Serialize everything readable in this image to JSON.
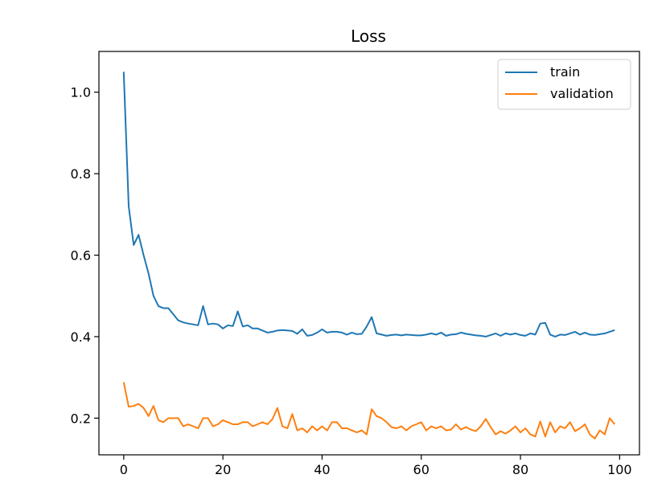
{
  "chart_data": {
    "type": "line",
    "title": "Loss",
    "xlabel": "",
    "ylabel": "",
    "xlim": [
      -5,
      104
    ],
    "ylim": [
      0.11,
      1.1
    ],
    "xticks": [
      0,
      20,
      40,
      60,
      80,
      100
    ],
    "yticks": [
      0.2,
      0.4,
      0.6,
      0.8,
      1.0
    ],
    "xtick_labels": [
      "0",
      "20",
      "40",
      "60",
      "80",
      "100"
    ],
    "ytick_labels": [
      "0.2",
      "0.4",
      "0.6",
      "0.8",
      "1.0"
    ],
    "grid": false,
    "legend_position": "top-right",
    "series": [
      {
        "name": "train",
        "color": "#1f77b4",
        "values": [
          1.05,
          0.72,
          0.625,
          0.65,
          0.6,
          0.555,
          0.5,
          0.475,
          0.47,
          0.47,
          0.455,
          0.44,
          0.435,
          0.432,
          0.43,
          0.428,
          0.475,
          0.43,
          0.432,
          0.43,
          0.42,
          0.428,
          0.426,
          0.462,
          0.425,
          0.428,
          0.42,
          0.42,
          0.415,
          0.41,
          0.412,
          0.415,
          0.416,
          0.415,
          0.414,
          0.407,
          0.418,
          0.402,
          0.404,
          0.41,
          0.418,
          0.41,
          0.412,
          0.412,
          0.41,
          0.405,
          0.41,
          0.406,
          0.407,
          0.425,
          0.448,
          0.408,
          0.405,
          0.402,
          0.404,
          0.405,
          0.403,
          0.405,
          0.404,
          0.403,
          0.403,
          0.405,
          0.408,
          0.405,
          0.41,
          0.402,
          0.405,
          0.406,
          0.41,
          0.407,
          0.405,
          0.403,
          0.402,
          0.4,
          0.404,
          0.408,
          0.402,
          0.408,
          0.405,
          0.408,
          0.404,
          0.402,
          0.408,
          0.405,
          0.432,
          0.434,
          0.405,
          0.4,
          0.405,
          0.404,
          0.408,
          0.412,
          0.405,
          0.41,
          0.405,
          0.404,
          0.406,
          0.408,
          0.412,
          0.416
        ]
      },
      {
        "name": "validation",
        "color": "#ff7f0e",
        "values": [
          0.288,
          0.228,
          0.23,
          0.235,
          0.225,
          0.205,
          0.23,
          0.195,
          0.19,
          0.2,
          0.2,
          0.2,
          0.18,
          0.185,
          0.18,
          0.175,
          0.2,
          0.2,
          0.18,
          0.185,
          0.195,
          0.19,
          0.185,
          0.185,
          0.19,
          0.19,
          0.18,
          0.185,
          0.19,
          0.185,
          0.198,
          0.225,
          0.18,
          0.175,
          0.21,
          0.17,
          0.175,
          0.165,
          0.18,
          0.17,
          0.18,
          0.17,
          0.19,
          0.19,
          0.175,
          0.175,
          0.17,
          0.165,
          0.17,
          0.16,
          0.222,
          0.205,
          0.2,
          0.19,
          0.178,
          0.175,
          0.18,
          0.17,
          0.18,
          0.185,
          0.19,
          0.17,
          0.18,
          0.175,
          0.18,
          0.17,
          0.172,
          0.185,
          0.172,
          0.178,
          0.172,
          0.168,
          0.18,
          0.198,
          0.178,
          0.16,
          0.168,
          0.162,
          0.17,
          0.18,
          0.165,
          0.175,
          0.16,
          0.155,
          0.192,
          0.155,
          0.19,
          0.165,
          0.18,
          0.175,
          0.19,
          0.168,
          0.175,
          0.185,
          0.16,
          0.15,
          0.17,
          0.16,
          0.2,
          0.185
        ]
      }
    ]
  }
}
